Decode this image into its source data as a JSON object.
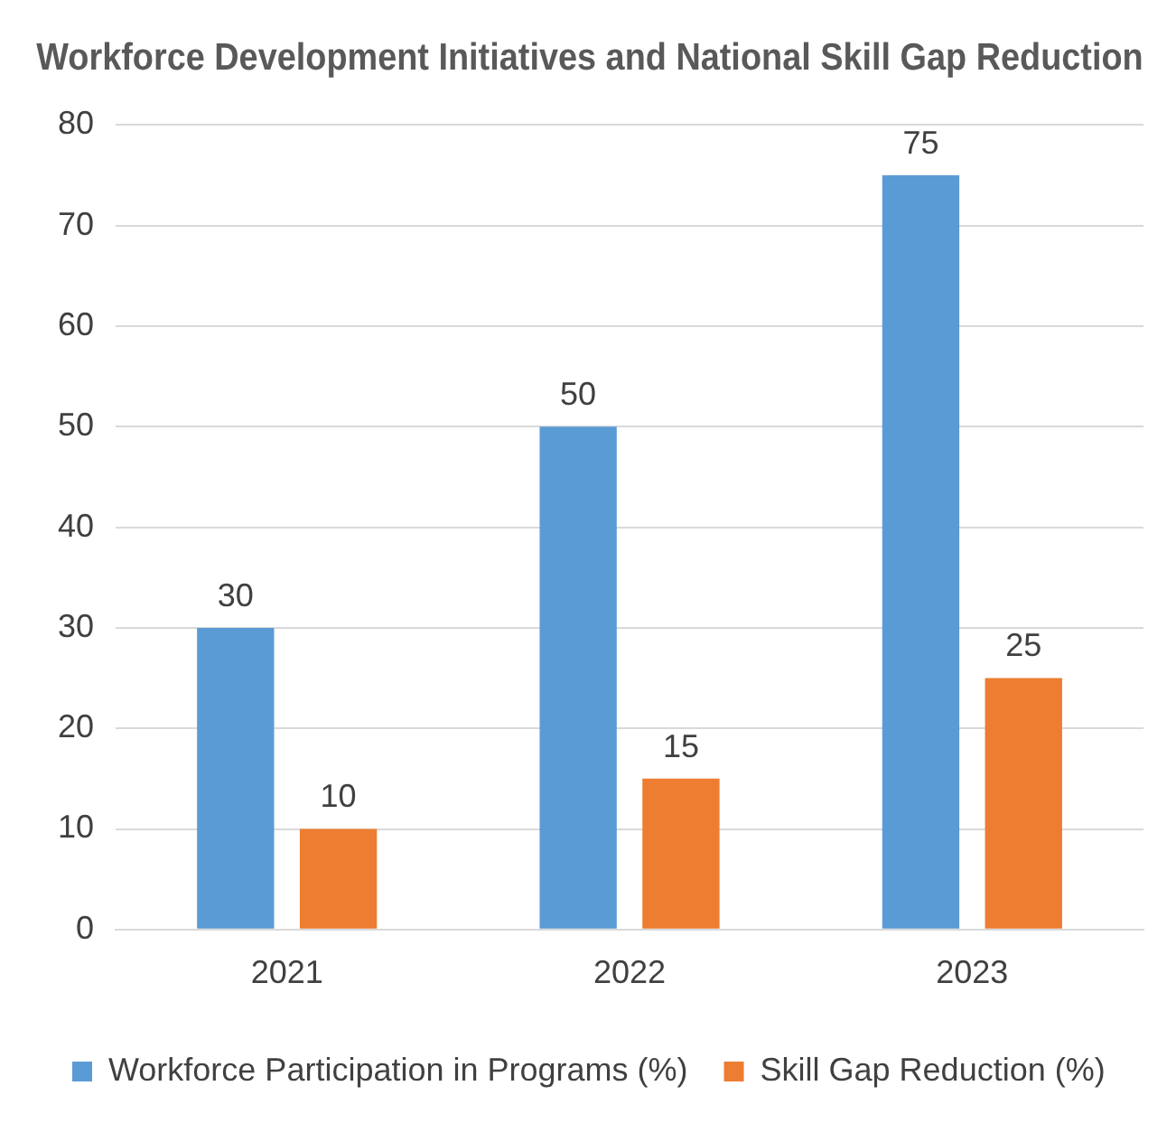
{
  "chart_data": {
    "type": "bar",
    "title": "Workforce Development Initiatives and National Skill Gap Reduction",
    "categories": [
      "2021",
      "2022",
      "2023"
    ],
    "series": [
      {
        "name": "Workforce Participation in Programs (%)",
        "color": "#5b9bd5",
        "values": [
          30,
          50,
          75
        ]
      },
      {
        "name": "Skill Gap Reduction (%)",
        "color": "#ed7d31",
        "values": [
          10,
          15,
          25
        ]
      }
    ],
    "ylim": [
      0,
      80
    ],
    "yticks": [
      0,
      10,
      20,
      30,
      40,
      50,
      60,
      70,
      80
    ],
    "grid": "y",
    "legend": "bottom",
    "data_labels": true
  }
}
